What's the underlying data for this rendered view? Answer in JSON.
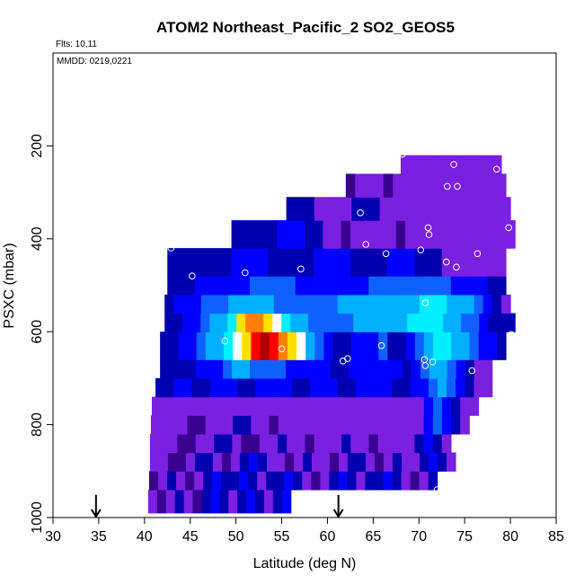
{
  "chart_data": {
    "type": "heatmap",
    "title": "ATOM2 Northeast_Pacific_2 SO2_GEOS5",
    "subtitle": "Flts: 10,11",
    "annotation": "MMDD: 0219,0221",
    "xlabel": "Latitude (deg N)",
    "ylabel": "PSXC (mbar)",
    "xlim": [
      30,
      85
    ],
    "ylim": [
      1000,
      0
    ],
    "x_ticks": [
      "30",
      "35",
      "40",
      "45",
      "50",
      "55",
      "60",
      "65",
      "70",
      "75",
      "80",
      "85"
    ],
    "y_ticks": [
      "200",
      "400",
      "600",
      "800",
      "1000"
    ],
    "x_tick_values": [
      30,
      35,
      40,
      45,
      50,
      55,
      60,
      65,
      70,
      75,
      80,
      85
    ],
    "y_tick_values": [
      200,
      400,
      600,
      800,
      1000
    ],
    "grid": false,
    "colormap": [
      "#3a0090",
      "#7b1fe0",
      "#0000b0",
      "#0000ff",
      "#1060ff",
      "#00b0ff",
      "#00f0ff",
      "#ffffff",
      "#ffe000",
      "#ff8000",
      "#ff0000",
      "#b00000"
    ],
    "layers": [
      {
        "pmin": 940,
        "pmax": 990,
        "xmin": 40.4,
        "xmax": 56,
        "values": [
          1,
          0,
          1,
          2,
          1,
          0,
          2,
          3,
          2,
          1,
          2,
          3,
          2,
          1,
          2,
          3
        ]
      },
      {
        "pmin": 900,
        "pmax": 940,
        "xmin": 40.5,
        "xmax": 72,
        "values": [
          0,
          1,
          2,
          1,
          0,
          1,
          2,
          3,
          2,
          2,
          3,
          2,
          1,
          2,
          2,
          3,
          2,
          1,
          0,
          1,
          2,
          3,
          2,
          1,
          2,
          2,
          3,
          2,
          1,
          0,
          1,
          2
        ]
      },
      {
        "pmin": 860,
        "pmax": 900,
        "xmin": 40.6,
        "xmax": 74,
        "values": [
          1,
          1,
          0,
          0,
          1,
          2,
          2,
          1,
          0,
          1,
          2,
          3,
          2,
          1,
          1,
          0,
          1,
          2,
          1,
          1,
          0,
          1,
          2,
          2,
          1,
          0,
          1,
          2,
          1,
          1,
          2,
          3,
          2,
          1
        ]
      },
      {
        "pmin": 820,
        "pmax": 860,
        "xmin": 40.6,
        "xmax": 73.5,
        "values": [
          1,
          1,
          1,
          0,
          0,
          1,
          1,
          2,
          2,
          1,
          0,
          0,
          1,
          1,
          2,
          1,
          1,
          0,
          1,
          1,
          1,
          2,
          1,
          1,
          0,
          1,
          1,
          1,
          1,
          2,
          3,
          2,
          1
        ]
      },
      {
        "pmin": 780,
        "pmax": 820,
        "xmin": 40.7,
        "xmax": 75.5,
        "values": [
          1,
          1,
          1,
          1,
          0,
          0,
          1,
          1,
          1,
          2,
          2,
          1,
          1,
          0,
          1,
          1,
          1,
          1,
          1,
          1,
          1,
          1,
          1,
          1,
          1,
          1,
          1,
          1,
          1,
          1,
          3,
          4,
          3,
          2,
          1
        ]
      },
      {
        "pmin": 740,
        "pmax": 780,
        "xmin": 40.8,
        "xmax": 76.5,
        "values": [
          1,
          1,
          1,
          1,
          1,
          1,
          1,
          1,
          1,
          1,
          1,
          1,
          1,
          1,
          1,
          1,
          1,
          1,
          1,
          1,
          1,
          1,
          1,
          1,
          1,
          1,
          1,
          1,
          1,
          1,
          3,
          4,
          3,
          2,
          1,
          1
        ]
      },
      {
        "pmin": 700,
        "pmax": 740,
        "xmin": 41.2,
        "xmax": 78,
        "values": [
          2,
          2,
          3,
          3,
          2,
          2,
          3,
          3,
          3,
          2,
          2,
          3,
          3,
          3,
          3,
          2,
          2,
          3,
          3,
          3,
          2,
          2,
          3,
          3,
          3,
          3,
          2,
          2,
          3,
          3,
          4,
          5,
          4,
          3,
          2,
          1,
          1
        ]
      },
      {
        "pmin": 660,
        "pmax": 700,
        "xmin": 41.7,
        "xmax": 78,
        "values": [
          2,
          2,
          2,
          2,
          3,
          3,
          3,
          4,
          5,
          5,
          4,
          4,
          4,
          4,
          3,
          3,
          3,
          3,
          3,
          2,
          2,
          3,
          3,
          3,
          3,
          3,
          3,
          2,
          3,
          4,
          5,
          5,
          4,
          3,
          2,
          1,
          1
        ]
      },
      {
        "pmin": 600,
        "pmax": 660,
        "xmin": 41.7,
        "xmax": 79.5,
        "values": [
          2,
          2,
          3,
          3,
          4,
          5,
          5,
          6,
          7,
          8,
          10,
          11,
          10,
          9,
          8,
          7,
          5,
          4,
          3,
          2,
          2,
          3,
          3,
          3,
          4,
          2,
          2,
          3,
          4,
          5,
          6,
          6,
          5,
          5,
          4,
          3,
          3,
          2
        ]
      },
      {
        "pmin": 560,
        "pmax": 600,
        "xmin": 42.2,
        "xmax": 80.5,
        "values": [
          2,
          2,
          3,
          3,
          4,
          5,
          5,
          6,
          8,
          9,
          9,
          8,
          7,
          6,
          5,
          5,
          4,
          4,
          4,
          4,
          4,
          5,
          5,
          5,
          5,
          5,
          5,
          6,
          6,
          6,
          6,
          5,
          5,
          4,
          4,
          3,
          2,
          2,
          2
        ]
      },
      {
        "pmin": 520,
        "pmax": 560,
        "xmin": 42.2,
        "xmax": 80,
        "values": [
          2,
          3,
          3,
          3,
          4,
          4,
          4,
          5,
          5,
          5,
          5,
          5,
          4,
          4,
          4,
          4,
          4,
          4,
          4,
          5,
          5,
          5,
          5,
          5,
          5,
          5,
          5,
          5,
          6,
          6,
          6,
          5,
          5,
          5,
          4,
          3,
          2,
          1
        ]
      },
      {
        "pmin": 480,
        "pmax": 520,
        "xmin": 42.5,
        "xmax": 79.5,
        "values": [
          2,
          2,
          2,
          3,
          3,
          3,
          3,
          3,
          3,
          4,
          4,
          4,
          4,
          4,
          3,
          3,
          3,
          3,
          3,
          3,
          3,
          3,
          4,
          4,
          4,
          4,
          4,
          4,
          4,
          4,
          4,
          3,
          3,
          3,
          3,
          2,
          2
        ]
      },
      {
        "pmin": 420,
        "pmax": 480,
        "xmin": 42.5,
        "xmax": 79.5,
        "values": [
          2,
          2,
          2,
          2,
          2,
          2,
          2,
          3,
          3,
          3,
          3,
          2,
          2,
          2,
          2,
          2,
          3,
          3,
          3,
          3,
          2,
          2,
          2,
          2,
          3,
          3,
          3,
          2,
          2,
          2,
          1,
          1,
          1,
          1,
          1,
          1,
          1
        ]
      },
      {
        "pmin": 360,
        "pmax": 420,
        "xmin": 49.5,
        "xmax": 80.5,
        "values": [
          2,
          2,
          2,
          2,
          2,
          3,
          3,
          3,
          2,
          2,
          1,
          1,
          0,
          1,
          1,
          1,
          1,
          1,
          0,
          1,
          1,
          1,
          1,
          1,
          1,
          1,
          1,
          1,
          1,
          1,
          1
        ]
      },
      {
        "pmin": 310,
        "pmax": 360,
        "xmin": 55.5,
        "xmax": 80,
        "values": [
          2,
          2,
          2,
          1,
          1,
          1,
          1,
          2,
          2,
          2,
          1,
          1,
          1,
          1,
          1,
          1,
          1,
          1,
          1,
          1,
          1,
          1,
          1,
          1
        ]
      },
      {
        "pmin": 260,
        "pmax": 310,
        "xmin": 62,
        "xmax": 79.5,
        "values": [
          0,
          1,
          1,
          1,
          0,
          1,
          1,
          1,
          1,
          1,
          1,
          1,
          1,
          1,
          1,
          1,
          1
        ]
      },
      {
        "pmin": 220,
        "pmax": 260,
        "xmin": 68,
        "xmax": 79,
        "values": [
          1,
          1,
          1,
          1,
          1,
          1,
          1,
          1,
          1,
          1,
          1
        ]
      }
    ],
    "points": [
      [
        68.2,
        218
      ],
      [
        73.8,
        240
      ],
      [
        78.5,
        250
      ],
      [
        73.1,
        287
      ],
      [
        74.2,
        287
      ],
      [
        63.6,
        344
      ],
      [
        71,
        376
      ],
      [
        79.8,
        376
      ],
      [
        71.1,
        391
      ],
      [
        64.2,
        412
      ],
      [
        42.9,
        420
      ],
      [
        66.4,
        432
      ],
      [
        76.4,
        432
      ],
      [
        70.2,
        424
      ],
      [
        73,
        450
      ],
      [
        74.1,
        461
      ],
      [
        57.1,
        465
      ],
      [
        51,
        473
      ],
      [
        45.2,
        480
      ],
      [
        70.7,
        538
      ],
      [
        80.1,
        606
      ],
      [
        48.8,
        620
      ],
      [
        65.9,
        630
      ],
      [
        55,
        637
      ],
      [
        62.2,
        658
      ],
      [
        61.7,
        663
      ],
      [
        70.6,
        660
      ],
      [
        71.5,
        665
      ],
      [
        70.7,
        673
      ],
      [
        75.8,
        684
      ],
      [
        40.6,
        720
      ],
      [
        72,
        940
      ],
      [
        70.4,
        955
      ],
      [
        55.8,
        1000
      ],
      [
        40.5,
        1000
      ],
      [
        44.4,
        1000
      ]
    ],
    "arrows": [
      34.7,
      61.2
    ]
  }
}
